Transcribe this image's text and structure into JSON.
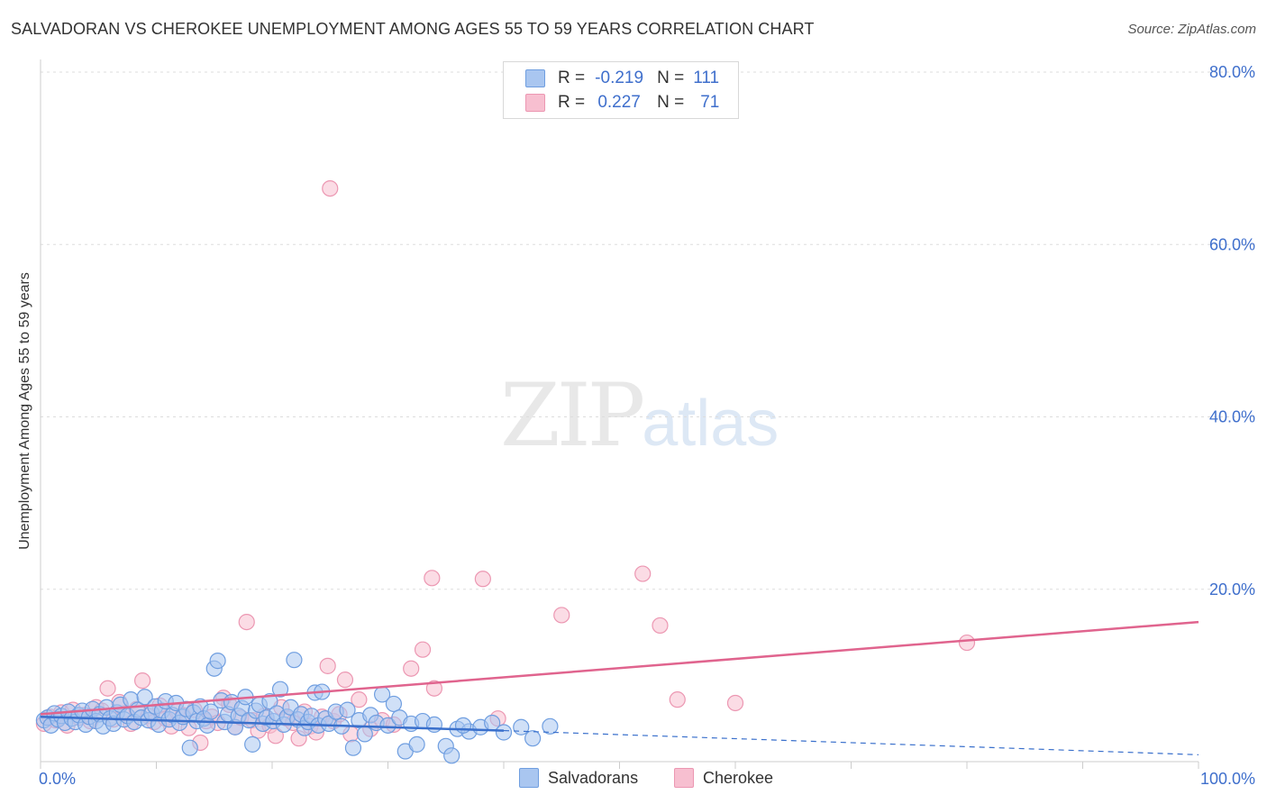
{
  "header": {
    "title": "SALVADORAN VS CHEROKEE UNEMPLOYMENT AMONG AGES 55 TO 59 YEARS CORRELATION CHART",
    "source": "Source: ZipAtlas.com"
  },
  "watermark": {
    "zip": "ZIP",
    "atlas": "atlas"
  },
  "legend": {
    "rows": [
      {
        "r_label": "R =",
        "r_value": "-0.219",
        "n_label": "N =",
        "n_value": "111"
      },
      {
        "r_label": "R =",
        "r_value": "0.227",
        "n_label": "N =",
        "n_value": "71"
      }
    ]
  },
  "bottom_legend": {
    "series1": "Salvadorans",
    "series2": "Cherokee"
  },
  "colors": {
    "salvadorans_fill": "#a9c6f0",
    "salvadorans_stroke": "#6f9ee0",
    "salvadorans_line": "#3a70cc",
    "cherokee_fill": "#f7bfd0",
    "cherokee_stroke": "#ec97b2",
    "cherokee_line": "#e0648e",
    "axis_label": "#3f6fcc",
    "grid": "#dddddd"
  },
  "chart_data": {
    "type": "scatter",
    "title": "SALVADORAN VS CHEROKEE UNEMPLOYMENT AMONG AGES 55 TO 59 YEARS CORRELATION CHART",
    "xlabel": "",
    "ylabel": "Unemployment Among Ages 55 to 59 years",
    "xlim": [
      0,
      100
    ],
    "ylim": [
      0,
      80
    ],
    "x_tick_labels": [
      "0.0%",
      "100.0%"
    ],
    "y_ticks": [
      20,
      40,
      60,
      80
    ],
    "y_tick_labels": [
      "20.0%",
      "40.0%",
      "60.0%",
      "80.0%"
    ],
    "grid": true,
    "series": [
      {
        "name": "Salvadorans",
        "r": -0.219,
        "n": 111,
        "trend": {
          "x0": 0,
          "y0": 5.2,
          "x1": 40,
          "y1": 3.6,
          "dashed_to_x": 100,
          "dashed_to_y": 0.8
        },
        "points": [
          [
            0.3,
            4.8
          ],
          [
            0.6,
            5.1
          ],
          [
            0.9,
            4.2
          ],
          [
            1.2,
            5.6
          ],
          [
            1.5,
            4.9
          ],
          [
            1.8,
            5.3
          ],
          [
            2.1,
            4.5
          ],
          [
            2.4,
            5.8
          ],
          [
            2.7,
            5.0
          ],
          [
            3.0,
            4.6
          ],
          [
            3.3,
            5.4
          ],
          [
            3.6,
            5.9
          ],
          [
            3.9,
            4.3
          ],
          [
            4.2,
            5.2
          ],
          [
            4.5,
            6.1
          ],
          [
            4.8,
            4.7
          ],
          [
            5.1,
            5.5
          ],
          [
            5.4,
            4.1
          ],
          [
            5.7,
            6.3
          ],
          [
            6.0,
            5.0
          ],
          [
            6.3,
            4.4
          ],
          [
            6.6,
            5.7
          ],
          [
            6.9,
            6.6
          ],
          [
            7.2,
            4.9
          ],
          [
            7.5,
            5.3
          ],
          [
            7.8,
            7.2
          ],
          [
            8.1,
            4.6
          ],
          [
            8.4,
            6.0
          ],
          [
            8.7,
            5.1
          ],
          [
            9.0,
            7.5
          ],
          [
            9.3,
            4.8
          ],
          [
            9.6,
            5.6
          ],
          [
            9.9,
            6.4
          ],
          [
            10.2,
            4.3
          ],
          [
            10.5,
            5.9
          ],
          [
            10.8,
            7.0
          ],
          [
            11.1,
            4.9
          ],
          [
            11.4,
            5.4
          ],
          [
            11.7,
            6.8
          ],
          [
            12.0,
            4.5
          ],
          [
            12.3,
            5.2
          ],
          [
            12.6,
            6.1
          ],
          [
            12.9,
            1.6
          ],
          [
            13.2,
            5.7
          ],
          [
            13.5,
            4.7
          ],
          [
            13.8,
            6.4
          ],
          [
            14.1,
            5.0
          ],
          [
            14.4,
            4.2
          ],
          [
            14.7,
            5.8
          ],
          [
            15.0,
            10.8
          ],
          [
            15.3,
            11.7
          ],
          [
            15.6,
            7.1
          ],
          [
            15.9,
            4.6
          ],
          [
            16.2,
            5.5
          ],
          [
            16.5,
            6.9
          ],
          [
            16.8,
            4.0
          ],
          [
            17.1,
            5.3
          ],
          [
            17.4,
            6.2
          ],
          [
            17.7,
            7.5
          ],
          [
            18.0,
            4.8
          ],
          [
            18.3,
            2.0
          ],
          [
            18.6,
            5.9
          ],
          [
            18.9,
            6.6
          ],
          [
            19.2,
            4.4
          ],
          [
            19.5,
            5.1
          ],
          [
            19.8,
            7.0
          ],
          [
            20.1,
            4.7
          ],
          [
            20.4,
            5.6
          ],
          [
            20.7,
            8.4
          ],
          [
            21.0,
            4.3
          ],
          [
            21.3,
            5.2
          ],
          [
            21.6,
            6.3
          ],
          [
            21.9,
            11.8
          ],
          [
            22.2,
            4.9
          ],
          [
            22.5,
            5.5
          ],
          [
            22.8,
            3.9
          ],
          [
            23.1,
            4.6
          ],
          [
            23.4,
            5.3
          ],
          [
            23.7,
            8.0
          ],
          [
            24.0,
            4.2
          ],
          [
            24.3,
            8.1
          ],
          [
            24.6,
            5.0
          ],
          [
            24.9,
            4.4
          ],
          [
            25.5,
            5.8
          ],
          [
            26.0,
            4.1
          ],
          [
            26.5,
            6.0
          ],
          [
            27.0,
            1.6
          ],
          [
            27.5,
            4.8
          ],
          [
            28.0,
            3.2
          ],
          [
            28.5,
            5.4
          ],
          [
            29.0,
            4.5
          ],
          [
            29.5,
            7.8
          ],
          [
            30.0,
            4.2
          ],
          [
            30.5,
            6.7
          ],
          [
            31.0,
            5.1
          ],
          [
            31.5,
            1.2
          ],
          [
            32.0,
            4.4
          ],
          [
            32.5,
            2.0
          ],
          [
            33.0,
            4.7
          ],
          [
            34.0,
            4.3
          ],
          [
            35.0,
            1.8
          ],
          [
            36.0,
            3.8
          ],
          [
            37.0,
            3.5
          ],
          [
            38.0,
            4.0
          ],
          [
            39.0,
            4.5
          ],
          [
            40.0,
            3.4
          ],
          [
            41.5,
            4.0
          ],
          [
            42.5,
            2.7
          ],
          [
            44.0,
            4.1
          ],
          [
            36.5,
            4.2
          ],
          [
            35.5,
            0.7
          ]
        ]
      },
      {
        "name": "Cherokee",
        "r": 0.227,
        "n": 71,
        "trend": {
          "x0": 0,
          "y0": 5.5,
          "x1": 100,
          "y1": 16.2
        },
        "points": [
          [
            0.3,
            4.4
          ],
          [
            0.8,
            5.2
          ],
          [
            1.3,
            4.8
          ],
          [
            1.8,
            5.7
          ],
          [
            2.3,
            4.2
          ],
          [
            2.8,
            6.0
          ],
          [
            3.3,
            5.1
          ],
          [
            3.8,
            5.4
          ],
          [
            4.3,
            4.7
          ],
          [
            4.8,
            6.3
          ],
          [
            5.3,
            5.9
          ],
          [
            5.8,
            8.5
          ],
          [
            6.3,
            4.9
          ],
          [
            6.8,
            6.9
          ],
          [
            7.3,
            5.6
          ],
          [
            7.8,
            4.4
          ],
          [
            8.3,
            6.1
          ],
          [
            8.8,
            9.4
          ],
          [
            9.3,
            5.3
          ],
          [
            9.8,
            4.6
          ],
          [
            10.3,
            6.5
          ],
          [
            10.8,
            5.0
          ],
          [
            11.3,
            4.1
          ],
          [
            11.8,
            5.8
          ],
          [
            12.3,
            5.4
          ],
          [
            12.8,
            3.9
          ],
          [
            13.3,
            6.0
          ],
          [
            13.8,
            2.2
          ],
          [
            14.3,
            4.7
          ],
          [
            14.8,
            5.2
          ],
          [
            15.3,
            4.5
          ],
          [
            15.8,
            7.4
          ],
          [
            16.3,
            6.6
          ],
          [
            16.8,
            4.0
          ],
          [
            17.3,
            5.1
          ],
          [
            17.8,
            16.2
          ],
          [
            18.3,
            4.8
          ],
          [
            18.8,
            3.6
          ],
          [
            19.3,
            5.3
          ],
          [
            19.8,
            4.2
          ],
          [
            20.3,
            3.0
          ],
          [
            20.8,
            6.3
          ],
          [
            21.3,
            5.0
          ],
          [
            21.8,
            4.5
          ],
          [
            22.3,
            2.7
          ],
          [
            22.8,
            5.8
          ],
          [
            23.3,
            4.1
          ],
          [
            23.8,
            3.4
          ],
          [
            24.3,
            5.2
          ],
          [
            24.8,
            11.1
          ],
          [
            25.3,
            4.7
          ],
          [
            25.8,
            5.5
          ],
          [
            26.3,
            9.5
          ],
          [
            26.8,
            3.2
          ],
          [
            27.5,
            7.2
          ],
          [
            28.5,
            3.8
          ],
          [
            29.5,
            4.8
          ],
          [
            30.5,
            4.3
          ],
          [
            32.0,
            10.8
          ],
          [
            33.0,
            13.0
          ],
          [
            34.0,
            8.5
          ],
          [
            25.0,
            66.5
          ],
          [
            33.8,
            21.3
          ],
          [
            38.2,
            21.2
          ],
          [
            45.0,
            17.0
          ],
          [
            52.0,
            21.8
          ],
          [
            53.5,
            15.8
          ],
          [
            39.5,
            5.0
          ],
          [
            55.0,
            7.2
          ],
          [
            60.0,
            6.8
          ],
          [
            80.0,
            13.8
          ]
        ]
      }
    ]
  }
}
